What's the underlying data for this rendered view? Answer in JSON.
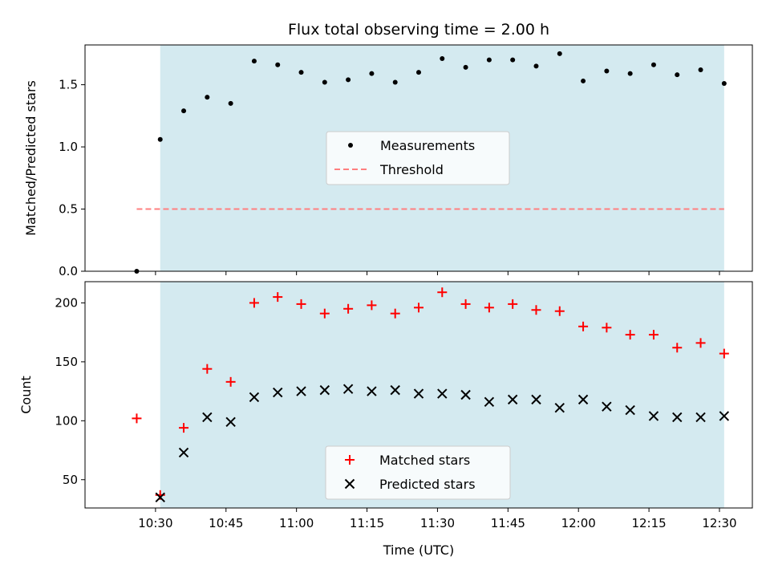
{
  "chart_data": [
    {
      "type": "scatter",
      "title": "Flux total observing time = 2.00 h",
      "ylabel": "Matched/Predicted stars",
      "ylim": [
        0,
        1.82
      ],
      "yticks": [
        0.0,
        0.5,
        1.0,
        1.5
      ],
      "ytick_labels": [
        "0.0",
        "0.5",
        "1.0",
        "1.5"
      ],
      "xlim": [
        "10:15",
        "12:37"
      ],
      "shaded_range": [
        "10:31",
        "12:31"
      ],
      "shade_color": "#d4eaf0",
      "legend": {
        "placement": "center",
        "entries": [
          "Measurements",
          "Threshold"
        ]
      },
      "series": [
        {
          "name": "Measurements",
          "marker": "dot",
          "color": "#000000",
          "x": [
            "10:26",
            "10:31",
            "10:36",
            "10:41",
            "10:46",
            "10:51",
            "10:56",
            "11:01",
            "11:06",
            "11:11",
            "11:16",
            "11:21",
            "11:26",
            "11:31",
            "11:36",
            "11:41",
            "11:46",
            "11:51",
            "11:56",
            "12:01",
            "12:06",
            "12:11",
            "12:16",
            "12:21",
            "12:26",
            "12:31"
          ],
          "y": [
            0.0,
            1.06,
            1.29,
            1.4,
            1.35,
            1.69,
            1.66,
            1.6,
            1.52,
            1.54,
            1.59,
            1.52,
            1.6,
            1.71,
            1.64,
            1.7,
            1.7,
            1.65,
            1.75,
            1.53,
            1.61,
            1.59,
            1.66,
            1.58,
            1.62,
            1.51
          ]
        },
        {
          "name": "Threshold",
          "type": "line",
          "style": "dashed",
          "color": "#ff7f7f",
          "x": [
            "10:26",
            "12:31"
          ],
          "y": [
            0.5,
            0.5
          ]
        }
      ]
    },
    {
      "type": "scatter",
      "xlabel": "Time (UTC)",
      "ylabel": "Count",
      "ylim": [
        26,
        218
      ],
      "yticks": [
        50,
        100,
        150,
        200
      ],
      "ytick_labels": [
        "50",
        "100",
        "150",
        "200"
      ],
      "xlim": [
        "10:15",
        "12:37"
      ],
      "xticks": [
        "10:30",
        "10:45",
        "11:00",
        "11:15",
        "11:30",
        "11:45",
        "12:00",
        "12:15",
        "12:30"
      ],
      "shaded_range": [
        "10:31",
        "12:31"
      ],
      "shade_color": "#d4eaf0",
      "legend": {
        "placement": "lower center",
        "entries": [
          "Matched stars",
          "Predicted stars"
        ]
      },
      "series": [
        {
          "name": "Matched stars",
          "marker": "plus",
          "color": "#ff0000",
          "x": [
            "10:26",
            "10:31",
            "10:36",
            "10:41",
            "10:46",
            "10:51",
            "10:56",
            "11:01",
            "11:06",
            "11:11",
            "11:16",
            "11:21",
            "11:26",
            "11:31",
            "11:36",
            "11:41",
            "11:46",
            "11:51",
            "11:56",
            "12:01",
            "12:06",
            "12:11",
            "12:16",
            "12:21",
            "12:26",
            "12:31"
          ],
          "y": [
            102,
            37,
            94,
            144,
            133,
            200,
            205,
            199,
            191,
            195,
            198,
            191,
            196,
            209,
            199,
            196,
            199,
            194,
            193,
            180,
            179,
            173,
            173,
            162,
            166,
            157
          ]
        },
        {
          "name": "Predicted stars",
          "marker": "x",
          "color": "#000000",
          "x": [
            "10:31",
            "10:36",
            "10:41",
            "10:46",
            "10:51",
            "10:56",
            "11:01",
            "11:06",
            "11:11",
            "11:16",
            "11:21",
            "11:26",
            "11:31",
            "11:36",
            "11:41",
            "11:46",
            "11:51",
            "11:56",
            "12:01",
            "12:06",
            "12:11",
            "12:16",
            "12:21",
            "12:26",
            "12:31"
          ],
          "y": [
            35,
            73,
            103,
            99,
            120,
            124,
            125,
            126,
            127,
            125,
            126,
            123,
            123,
            122,
            116,
            118,
            118,
            111,
            118,
            112,
            109,
            104,
            103,
            103,
            104
          ]
        }
      ]
    }
  ]
}
